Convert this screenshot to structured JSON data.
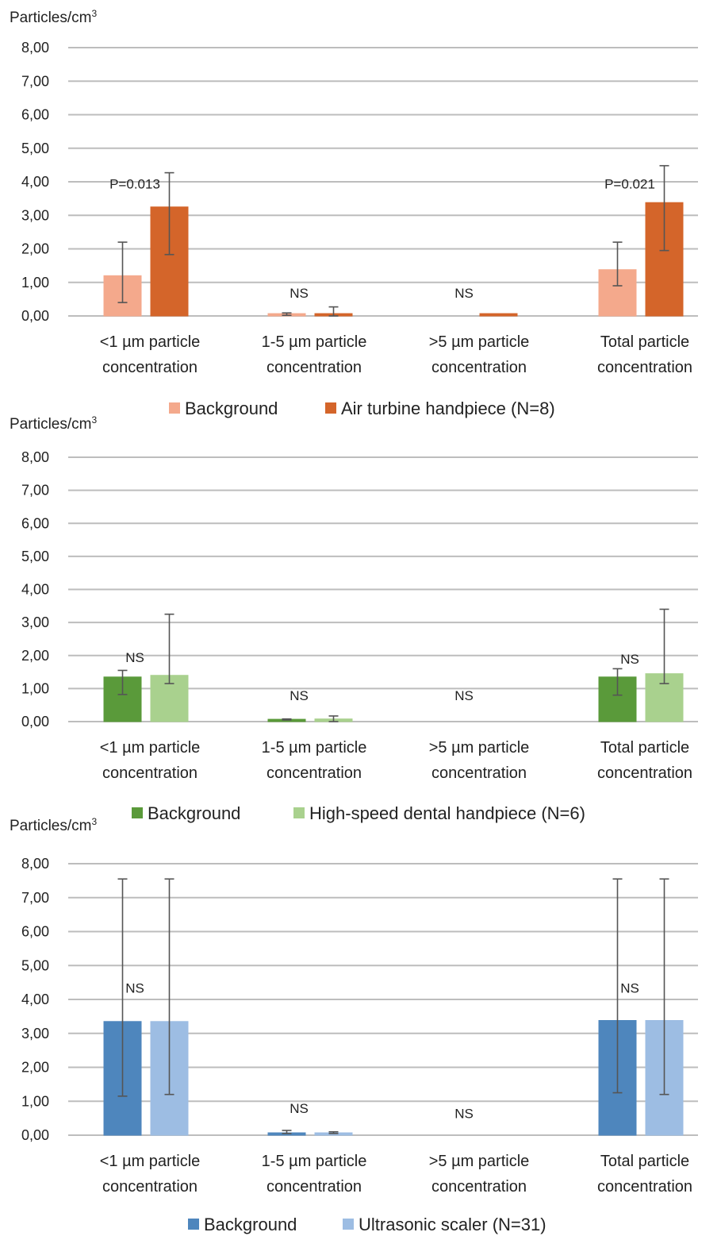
{
  "chart_data": [
    {
      "type": "bar",
      "ylabel": "Particles/cm",
      "ylabel_sup": "3",
      "ylim": [
        0,
        8
      ],
      "yticks": [
        "8,00",
        "7,00",
        "6,00",
        "5,00",
        "4,00",
        "3,00",
        "2,00",
        "1,00",
        "0,00"
      ],
      "categories": [
        [
          "<1 µm particle",
          "concentration"
        ],
        [
          "1-5 µm particle",
          "concentration"
        ],
        [
          ">5 µm particle",
          "concentration"
        ],
        [
          "Total particle",
          "concentration"
        ]
      ],
      "series": [
        {
          "name": "Background",
          "color": "#f4a98c",
          "values": [
            1.2,
            0.07,
            0.0,
            1.38
          ],
          "err_low": [
            0.4,
            0.02,
            0.0,
            0.9
          ],
          "err_high": [
            2.2,
            0.09,
            0.0,
            2.2
          ]
        },
        {
          "name": "Air turbine handpiece (N=8)",
          "color": "#d4652a",
          "values": [
            3.25,
            0.07,
            0.07,
            3.38
          ],
          "err_low": [
            1.83,
            0.0,
            0.0,
            1.95
          ],
          "err_high": [
            4.27,
            0.27,
            0.0,
            4.48
          ]
        }
      ],
      "annotations": [
        "P=0.013",
        "NS",
        "NS",
        "P=0.021"
      ],
      "annotation_y": [
        3.8,
        0.55,
        0.55,
        3.8
      ]
    },
    {
      "type": "bar",
      "ylabel": "Particles/cm",
      "ylabel_sup": "3",
      "ylim": [
        0,
        8
      ],
      "yticks": [
        "8,00",
        "7,00",
        "6,00",
        "5,00",
        "4,00",
        "3,00",
        "2,00",
        "1,00",
        "0,00"
      ],
      "categories": [
        [
          "<1 µm particle",
          "concentration"
        ],
        [
          "1-5 µm particle",
          "concentration"
        ],
        [
          ">5 µm particle",
          "concentration"
        ],
        [
          "Total particle",
          "concentration"
        ]
      ],
      "series": [
        {
          "name": "Background",
          "color": "#5a9a3a",
          "values": [
            1.35,
            0.07,
            0.0,
            1.35
          ],
          "err_low": [
            0.82,
            0.05,
            0.0,
            0.8
          ],
          "err_high": [
            1.55,
            0.08,
            0.0,
            1.6
          ]
        },
        {
          "name": "High-speed dental handpiece (N=6)",
          "color": "#a9d18e",
          "values": [
            1.4,
            0.08,
            0.0,
            1.45
          ],
          "err_low": [
            1.15,
            0.0,
            0.0,
            1.15
          ],
          "err_high": [
            3.25,
            0.17,
            0.0,
            3.4
          ]
        }
      ],
      "annotations": [
        "NS",
        "NS",
        "NS",
        "NS"
      ],
      "annotation_y": [
        1.8,
        0.65,
        0.65,
        1.75
      ]
    },
    {
      "type": "bar",
      "ylabel": "Particles/cm",
      "ylabel_sup": "3",
      "ylim": [
        0,
        8
      ],
      "yticks": [
        "8,00",
        "7,00",
        "6,00",
        "5,00",
        "4,00",
        "3,00",
        "2,00",
        "1,00",
        "0,00"
      ],
      "categories": [
        [
          "<1 µm particle",
          "concentration"
        ],
        [
          "1-5 µm particle",
          "concentration"
        ],
        [
          ">5 µm particle",
          "concentration"
        ],
        [
          "Total particle",
          "concentration"
        ]
      ],
      "series": [
        {
          "name": "Background",
          "color": "#4e86bd",
          "values": [
            3.35,
            0.07,
            0.0,
            3.38
          ],
          "err_low": [
            1.15,
            0.05,
            0.0,
            1.25
          ],
          "err_high": [
            7.55,
            0.14,
            0.0,
            7.55
          ]
        },
        {
          "name": "Ultrasonic scaler (N=31)",
          "color": "#9dbde3",
          "values": [
            3.35,
            0.07,
            0.0,
            3.38
          ],
          "err_low": [
            1.2,
            0.05,
            0.0,
            1.2
          ],
          "err_high": [
            7.55,
            0.1,
            0.0,
            7.55
          ]
        }
      ],
      "annotations": [
        "NS",
        "NS",
        "NS",
        "NS"
      ],
      "annotation_y": [
        4.2,
        0.65,
        0.5,
        4.2
      ]
    }
  ]
}
